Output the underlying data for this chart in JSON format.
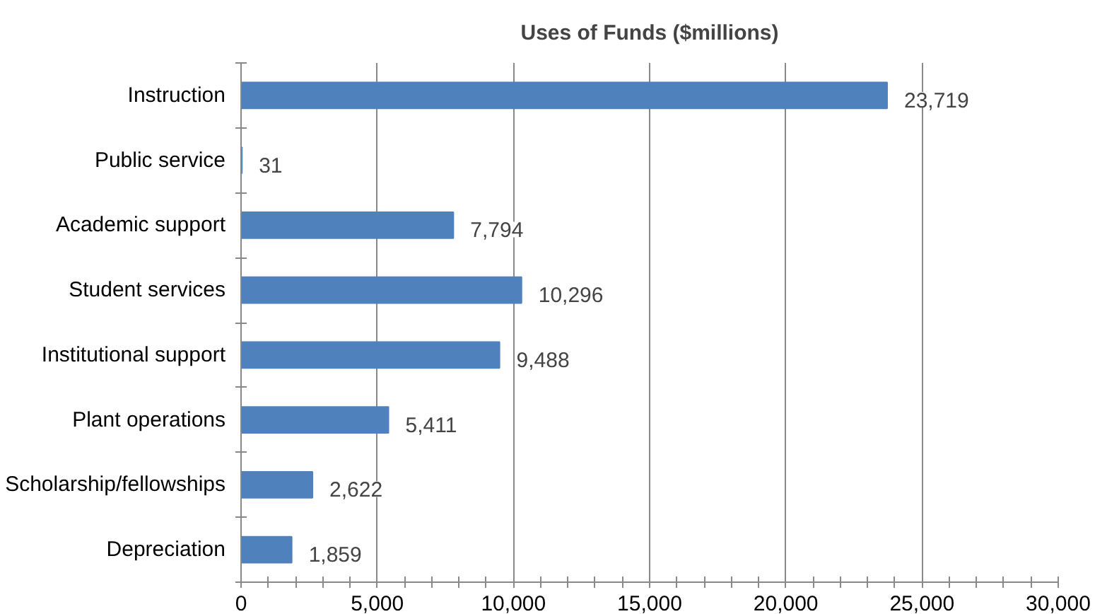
{
  "chart_data": {
    "type": "bar",
    "orientation": "horizontal",
    "title": "Uses of Funds ($millions)",
    "categories": [
      "Instruction",
      "Public service",
      "Academic support",
      "Student services",
      "Institutional support",
      "Plant operations",
      "Scholarship/fellowships",
      "Depreciation"
    ],
    "values": [
      23719,
      31,
      7794,
      10296,
      9488,
      5411,
      2622,
      1859
    ],
    "value_labels": [
      "23,719",
      "31",
      "7,794",
      "10,296",
      "9,488",
      "5,411",
      "2,622",
      "1,859"
    ],
    "color": "#4f81bd",
    "xlim": [
      0,
      30000
    ],
    "xticks": [
      0,
      {
        "value": 5000,
        "label": "5,000"
      },
      {
        "value": 10000,
        "label": "10,000"
      },
      {
        "value": 15000,
        "label": "15,000"
      },
      {
        "value": 20000,
        "label": "20,000"
      },
      {
        "value": 25000,
        "label": "25,000"
      },
      {
        "value": 30000,
        "label": "30,000"
      }
    ],
    "grid": "x"
  }
}
